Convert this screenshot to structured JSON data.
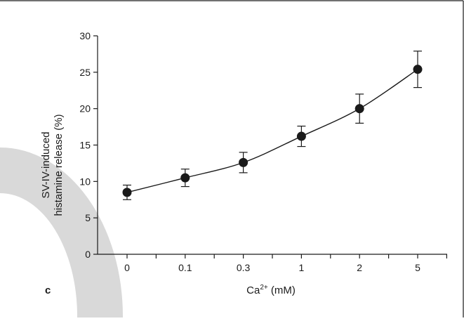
{
  "panel_label": "c",
  "colors": {
    "marker": "#1a1a1a",
    "axis": "#1a1a1a",
    "decorative_arc": "#d9d9d9",
    "frame": "#1a1a1a"
  },
  "chart_data": {
    "type": "line",
    "categories": [
      "0",
      "0.1",
      "0.3",
      "1",
      "2",
      "5"
    ],
    "series": [
      {
        "values": [
          8.5,
          10.5,
          12.6,
          16.2,
          20.0,
          25.4
        ],
        "error": [
          1.0,
          1.2,
          1.4,
          1.4,
          2.0,
          2.5
        ]
      }
    ],
    "xlabel": {
      "prefix": "Ca",
      "superscript": "2+",
      "suffix": " (mM)"
    },
    "ylabel": [
      "SV-IV-induced",
      "histamine release (%)"
    ],
    "ylim": [
      0,
      30
    ],
    "yticks": [
      0,
      5,
      10,
      15,
      20,
      25,
      30
    ],
    "grid": false,
    "marker": "filled-circle",
    "error_bars": true
  }
}
